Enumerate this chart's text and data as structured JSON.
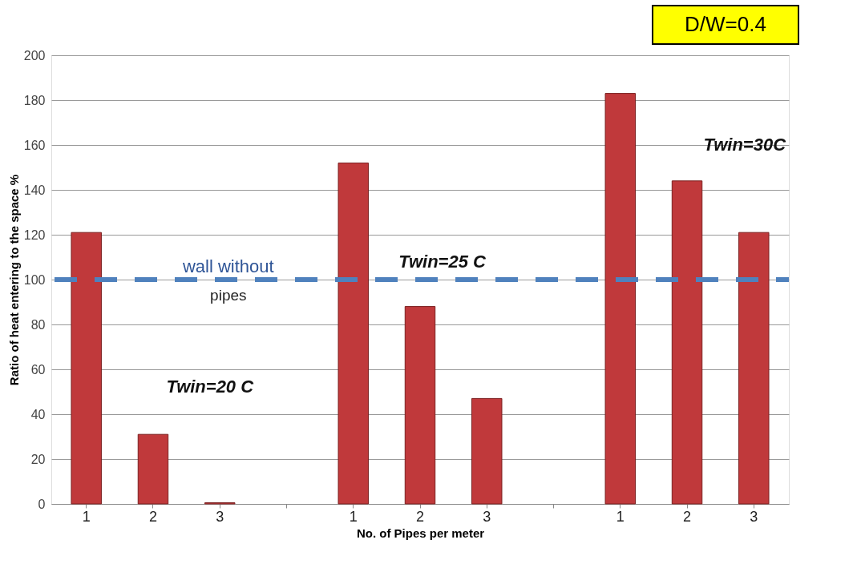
{
  "chart_data": {
    "type": "bar",
    "xlabel": "No. of Pipes per meter",
    "ylabel": "Ratio of heat entering to the space %",
    "categories": [
      "1",
      "2",
      "3",
      null,
      "1",
      "2",
      "3",
      null,
      "1",
      "2",
      "3"
    ],
    "values": [
      121,
      31,
      0.5,
      null,
      152,
      88,
      47,
      null,
      183,
      144,
      121
    ],
    "color": "#c0393b",
    "ylim": [
      0,
      200
    ],
    "yticks": [
      0,
      20,
      40,
      60,
      80,
      100,
      120,
      140,
      160,
      180,
      200
    ],
    "grid": "y",
    "ref_lines": [
      {
        "axis": "y",
        "value": 100,
        "label": "wall without pipes",
        "color": "#4f81bd",
        "line_style": "dashed"
      }
    ],
    "annotations": [
      "Twin=20 C",
      "Twin=25  C",
      "Twin=30C",
      "D/W=0.4"
    ]
  }
}
